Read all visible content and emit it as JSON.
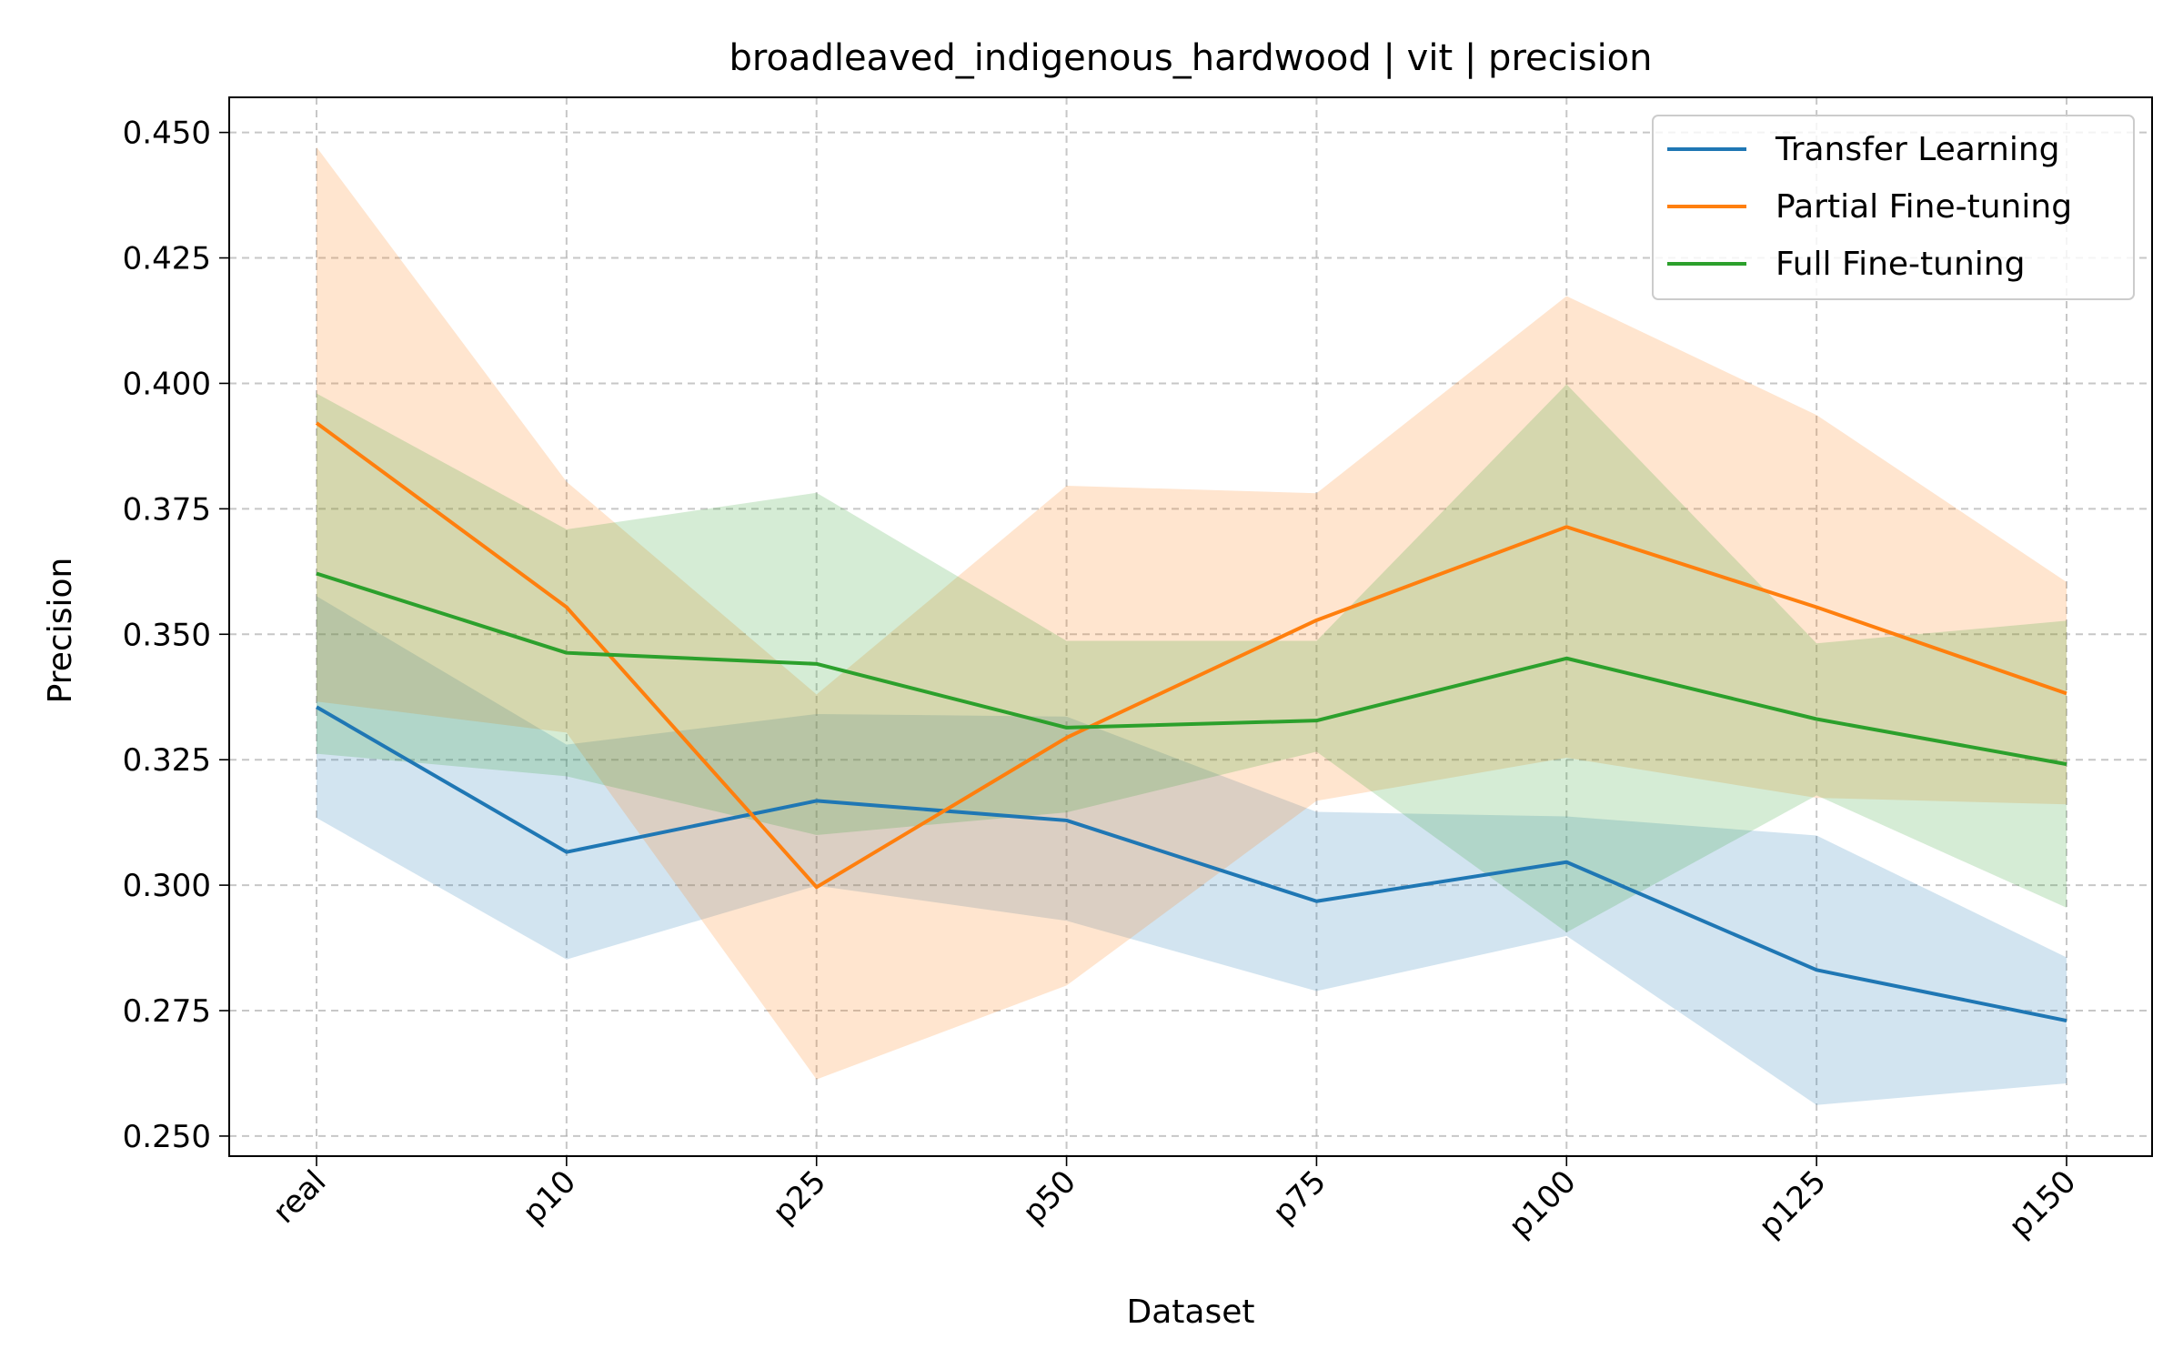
{
  "chart_data": {
    "type": "line",
    "title": "broadleaved_indigenous_hardwood | vit | precision",
    "xlabel": "Dataset",
    "ylabel": "Precision",
    "categories": [
      "real",
      "p10",
      "p25",
      "p50",
      "p75",
      "p100",
      "p125",
      "p150"
    ],
    "ylim": [
      0.246,
      0.457
    ],
    "yticks": [
      0.25,
      0.275,
      0.3,
      0.325,
      0.35,
      0.375,
      0.4,
      0.425,
      0.45
    ],
    "ytick_labels": [
      "0.250",
      "0.275",
      "0.300",
      "0.325",
      "0.350",
      "0.375",
      "0.400",
      "0.425",
      "0.450"
    ],
    "grid": true,
    "legend_position": "top-right",
    "series": [
      {
        "name": "Transfer Learning",
        "color": "#1f77b4",
        "values": [
          0.3355,
          0.3066,
          0.3168,
          0.3129,
          0.2968,
          0.3046,
          0.2831,
          0.273
        ],
        "lower": [
          0.3134,
          0.2852,
          0.2999,
          0.2929,
          0.2789,
          0.2899,
          0.2562,
          0.2605
        ],
        "upper": [
          0.3576,
          0.328,
          0.3341,
          0.3336,
          0.3146,
          0.3137,
          0.3099,
          0.2856
        ]
      },
      {
        "name": "Partial Fine-tuning",
        "color": "#ff7f0e",
        "values": [
          0.3921,
          0.3554,
          0.2996,
          0.3294,
          0.3528,
          0.3714,
          0.3554,
          0.3382
        ],
        "lower": [
          0.3366,
          0.3304,
          0.2613,
          0.28,
          0.3168,
          0.3254,
          0.3174,
          0.3161
        ],
        "upper": [
          0.4471,
          0.3804,
          0.338,
          0.3796,
          0.3781,
          0.4174,
          0.3937,
          0.3604
        ]
      },
      {
        "name": "Full Fine-tuning",
        "color": "#2ca02c",
        "values": [
          0.3621,
          0.3463,
          0.3441,
          0.3314,
          0.3328,
          0.3452,
          0.3331,
          0.3241
        ],
        "lower": [
          0.3262,
          0.3217,
          0.31,
          0.3145,
          0.3266,
          0.2906,
          0.3179,
          0.2955
        ],
        "upper": [
          0.398,
          0.3709,
          0.3782,
          0.3487,
          0.3487,
          0.3998,
          0.3482,
          0.3527
        ]
      }
    ]
  }
}
